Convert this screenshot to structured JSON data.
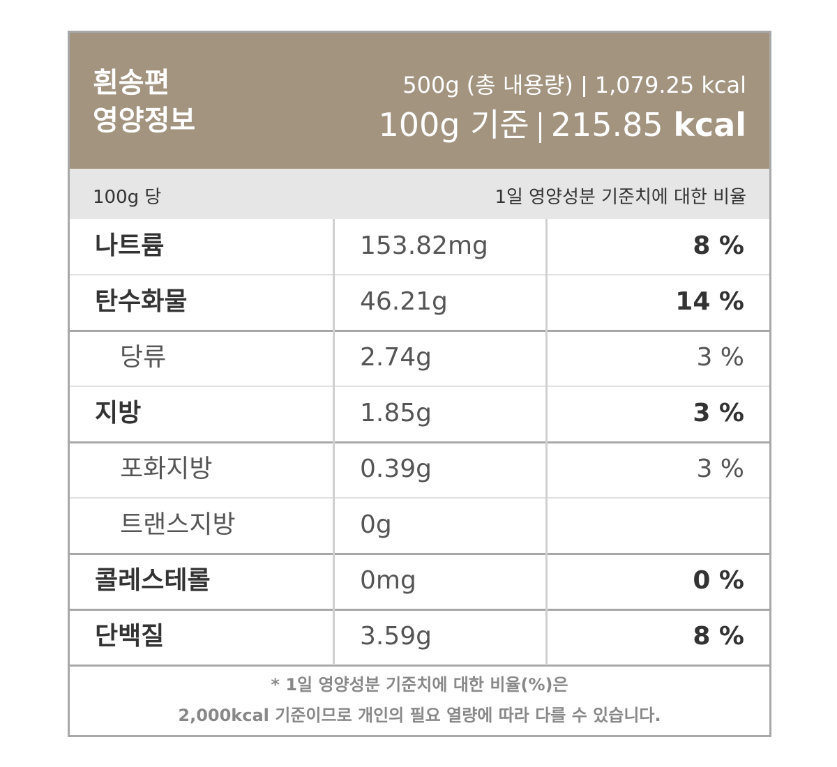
{
  "header": {
    "title": [
      "흰송편",
      "영양정보"
    ],
    "total": {
      "amount": "500g (총 내용량)",
      "energy": "1,079.25",
      "unit": "kcal"
    },
    "per100": {
      "basis": "100g 기준",
      "energy": "215.85",
      "unit": "kcal"
    }
  },
  "subheader": {
    "left": "100g 당",
    "right": "1일 영양성분 기준치에 대한 비율"
  },
  "table": {
    "rows": [
      [
        "나트륨",
        "153.82mg",
        "8 %"
      ],
      [
        "탄수화물",
        "46.21g",
        "14 %"
      ],
      [
        "당류",
        "2.74g",
        "3 %"
      ],
      [
        "지방",
        "1.85g",
        "3 %"
      ],
      [
        "포화지방",
        "0.39g",
        "3 %"
      ],
      [
        "트랜스지방",
        "0g",
        null
      ],
      [
        "콜레스테롤",
        "0mg",
        "0 %"
      ],
      [
        "단백질",
        "3.59g",
        "8 %"
      ]
    ]
  },
  "footnote": [
    "* 1일 영양성분 기준치에 대한 비율(%)은",
    "2,000kcal 기준이므로 개인의 필요 열량에 따라 다를 수 있습니다."
  ]
}
